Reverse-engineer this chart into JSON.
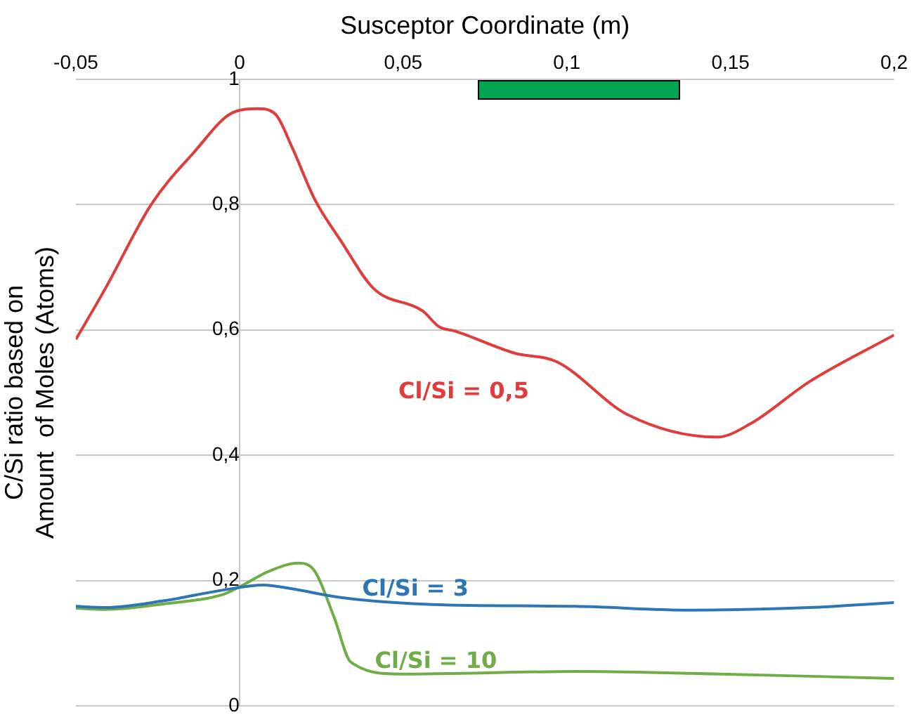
{
  "chart_data": {
    "type": "line",
    "xlabel": "Susceptor Coordinate (m)",
    "ylabel": "C/Si ratio based on\nAmount  of Moles (Atoms)",
    "xlim": [
      -0.05,
      0.2
    ],
    "ylim": [
      0,
      1
    ],
    "xticks": [
      {
        "value": -0.05,
        "label": "-0,05"
      },
      0,
      {
        "value": 0.05,
        "label": "0,05"
      },
      {
        "value": 0.1,
        "label": "0,1"
      },
      {
        "value": 0.15,
        "label": "0,15"
      },
      {
        "value": 0.2,
        "label": "0,2"
      }
    ],
    "yticks": [
      0,
      {
        "value": 0.2,
        "label": "0,2"
      },
      {
        "value": 0.4,
        "label": "0,4"
      },
      {
        "value": 0.6,
        "label": "0,6"
      },
      {
        "value": 0.8,
        "label": "0,8"
      },
      1
    ],
    "grid": "y",
    "legend": false,
    "marker": "none",
    "line_style": "solid",
    "series": [
      {
        "name": "Cl/Si = 0,5",
        "color": "#e03c3c",
        "x": [
          -0.05,
          -0.041,
          -0.027,
          -0.014,
          -0.002,
          0.0056,
          0.011,
          0.016,
          0.023,
          0.031,
          0.041,
          0.056,
          0.061,
          0.066,
          0.084,
          0.097,
          0.1185,
          0.146,
          0.156,
          0.174,
          0.2
        ],
        "values": [
          0.585,
          0.666,
          0.8,
          0.883,
          0.947,
          0.953,
          0.944,
          0.892,
          0.808,
          0.742,
          0.666,
          0.63,
          0.605,
          0.598,
          0.563,
          0.549,
          0.465,
          0.429,
          0.45,
          0.517,
          0.592
        ]
      },
      {
        "name": "Cl/Si = 3",
        "color": "#2e75b6",
        "x": [
          -0.05,
          -0.041,
          -0.023,
          -0.005,
          0.0073,
          0.016,
          0.031,
          0.059,
          0.1026,
          0.138,
          0.174,
          0.2
        ],
        "values": [
          0.159,
          0.157,
          0.168,
          0.185,
          0.193,
          0.187,
          0.173,
          0.162,
          0.159,
          0.153,
          0.157,
          0.165
        ]
      },
      {
        "name": "Cl/Si = 10",
        "color": "#70ad47",
        "x": [
          -0.05,
          -0.041,
          -0.023,
          -0.005,
          0,
          0.009,
          0.018,
          0.023,
          0.029,
          0.034,
          0.049,
          0.1026,
          0.138,
          0.2
        ],
        "values": [
          0.156,
          0.154,
          0.163,
          0.178,
          0.19,
          0.215,
          0.228,
          0.215,
          0.14,
          0.07,
          0.051,
          0.055,
          0.052,
          0.044
        ]
      }
    ]
  }
}
